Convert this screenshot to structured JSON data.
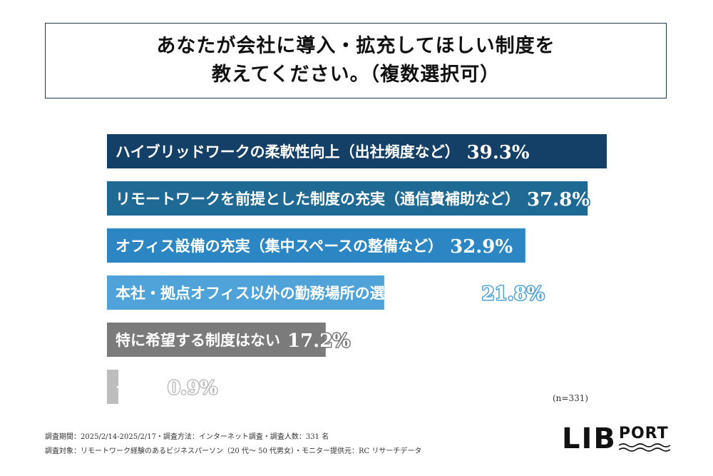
{
  "title": {
    "line1": "あなたが会社に導入・拡充してほしい制度を",
    "line2": "教えてください。（複数選択可）"
  },
  "chart_data": {
    "type": "bar",
    "orientation": "horizontal",
    "categories": [
      "ハイブリッドワークの柔軟性向上（出社頻度など）",
      "リモートワークを前提とした制度の充実（通信費補助など）",
      "オフィス設備の充実（集中スペースの整備など）",
      "本社・拠点オフィス以外の勤務場所の選択肢を増やす",
      "特に希望する制度はない",
      "その他"
    ],
    "values": [
      39.3,
      37.8,
      32.9,
      21.8,
      17.2,
      0.9
    ],
    "value_labels": [
      "39.3%",
      "37.8%",
      "32.9%",
      "21.8%",
      "17.2%",
      "0.9%"
    ],
    "colors": [
      "#143f66",
      "#1e6a95",
      "#2c86c4",
      "#4fa3d9",
      "#7b7b7b",
      "#bdbdbd"
    ],
    "xlim": [
      0,
      39.3
    ],
    "grid": false
  },
  "sample_size": "(n=331)",
  "footnotes": {
    "line1": "調査期間：2025/2/14-2025/2/17・調査方法：インターネット調査・調査人数：331 名",
    "line2": "調査対象：リモートワーク経験のあるビジネスパーソン（20 代～ 50 代男女）・モニター提供元：RC リサーチデータ"
  },
  "logo": {
    "part1": "LIB",
    "part2": "PORT"
  }
}
